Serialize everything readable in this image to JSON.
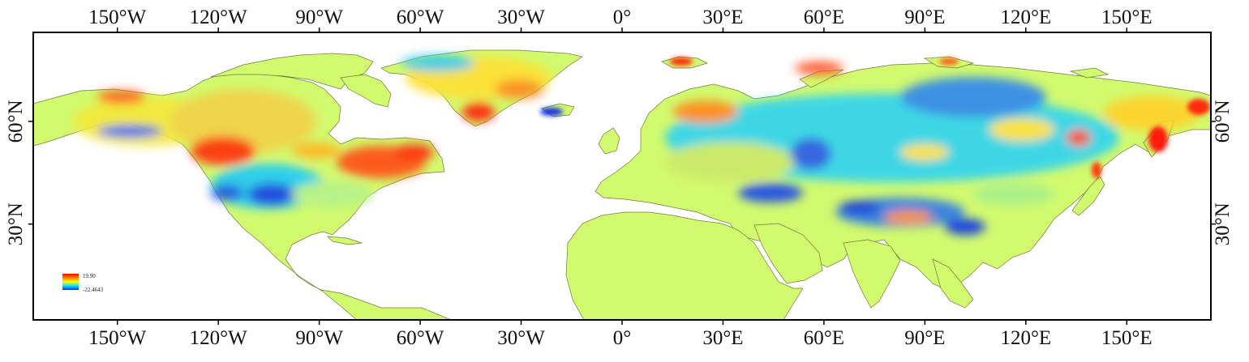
{
  "map": {
    "top_lon_labels": [
      "150°W",
      "120°W",
      "90°W",
      "60°W",
      "30°W",
      "0°",
      "30°E",
      "60°E",
      "90°E",
      "120°E",
      "150°E"
    ],
    "bottom_lon_labels": [
      "150°W",
      "120°W",
      "90°W",
      "60°W",
      "30°W",
      "0°",
      "30°E",
      "60°E",
      "90°E",
      "120°E",
      "150°E"
    ],
    "lon_values": [
      -150,
      -120,
      -90,
      -60,
      -30,
      0,
      30,
      60,
      90,
      120,
      150
    ],
    "left_lat_labels": [
      "60°N",
      "30°N"
    ],
    "right_lat_labels": [
      "60°N",
      "30°N"
    ],
    "lat_values": [
      60,
      30
    ],
    "lon_range": [
      -175,
      175
    ],
    "lat_range": [
      2,
      86
    ],
    "legend": {
      "max_label": "19.90",
      "min_label": "-22.4643",
      "colors": [
        "#ff0000",
        "#ff8c00",
        "#ffff00",
        "#00e5ff",
        "#0040ff"
      ]
    },
    "colors": {
      "land_base": "#d2fa6e",
      "frame": "#000000",
      "coast": "#6f7d3a"
    }
  }
}
